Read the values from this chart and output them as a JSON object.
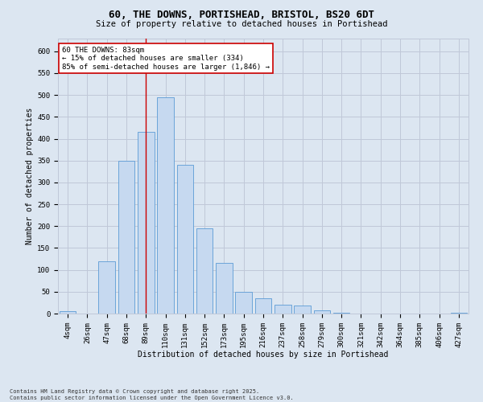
{
  "title_line1": "60, THE DOWNS, PORTISHEAD, BRISTOL, BS20 6DT",
  "title_line2": "Size of property relative to detached houses in Portishead",
  "xlabel": "Distribution of detached houses by size in Portishead",
  "ylabel": "Number of detached properties",
  "footer1": "Contains HM Land Registry data © Crown copyright and database right 2025.",
  "footer2": "Contains public sector information licensed under the Open Government Licence v3.0.",
  "categories": [
    "4sqm",
    "26sqm",
    "47sqm",
    "68sqm",
    "89sqm",
    "110sqm",
    "131sqm",
    "152sqm",
    "173sqm",
    "195sqm",
    "216sqm",
    "237sqm",
    "258sqm",
    "279sqm",
    "300sqm",
    "321sqm",
    "342sqm",
    "364sqm",
    "385sqm",
    "406sqm",
    "427sqm"
  ],
  "values": [
    5,
    0,
    120,
    350,
    415,
    495,
    340,
    195,
    115,
    50,
    35,
    20,
    18,
    8,
    2,
    0,
    0,
    0,
    0,
    0,
    2
  ],
  "bar_color": "#c6d9f0",
  "bar_edge_color": "#5b9bd5",
  "grid_color": "#c0c8d8",
  "background_color": "#dce6f1",
  "ylim": [
    0,
    630
  ],
  "yticks": [
    0,
    50,
    100,
    150,
    200,
    250,
    300,
    350,
    400,
    450,
    500,
    550,
    600
  ],
  "red_line_index": 4,
  "annotation_text": "60 THE DOWNS: 83sqm\n← 15% of detached houses are smaller (334)\n85% of semi-detached houses are larger (1,846) →",
  "annotation_box_color": "#ffffff",
  "annotation_border_color": "#cc0000",
  "title_fontsize": 9,
  "subtitle_fontsize": 7.5,
  "tick_fontsize": 6.5,
  "label_fontsize": 7,
  "annotation_fontsize": 6.5,
  "footer_fontsize": 5
}
